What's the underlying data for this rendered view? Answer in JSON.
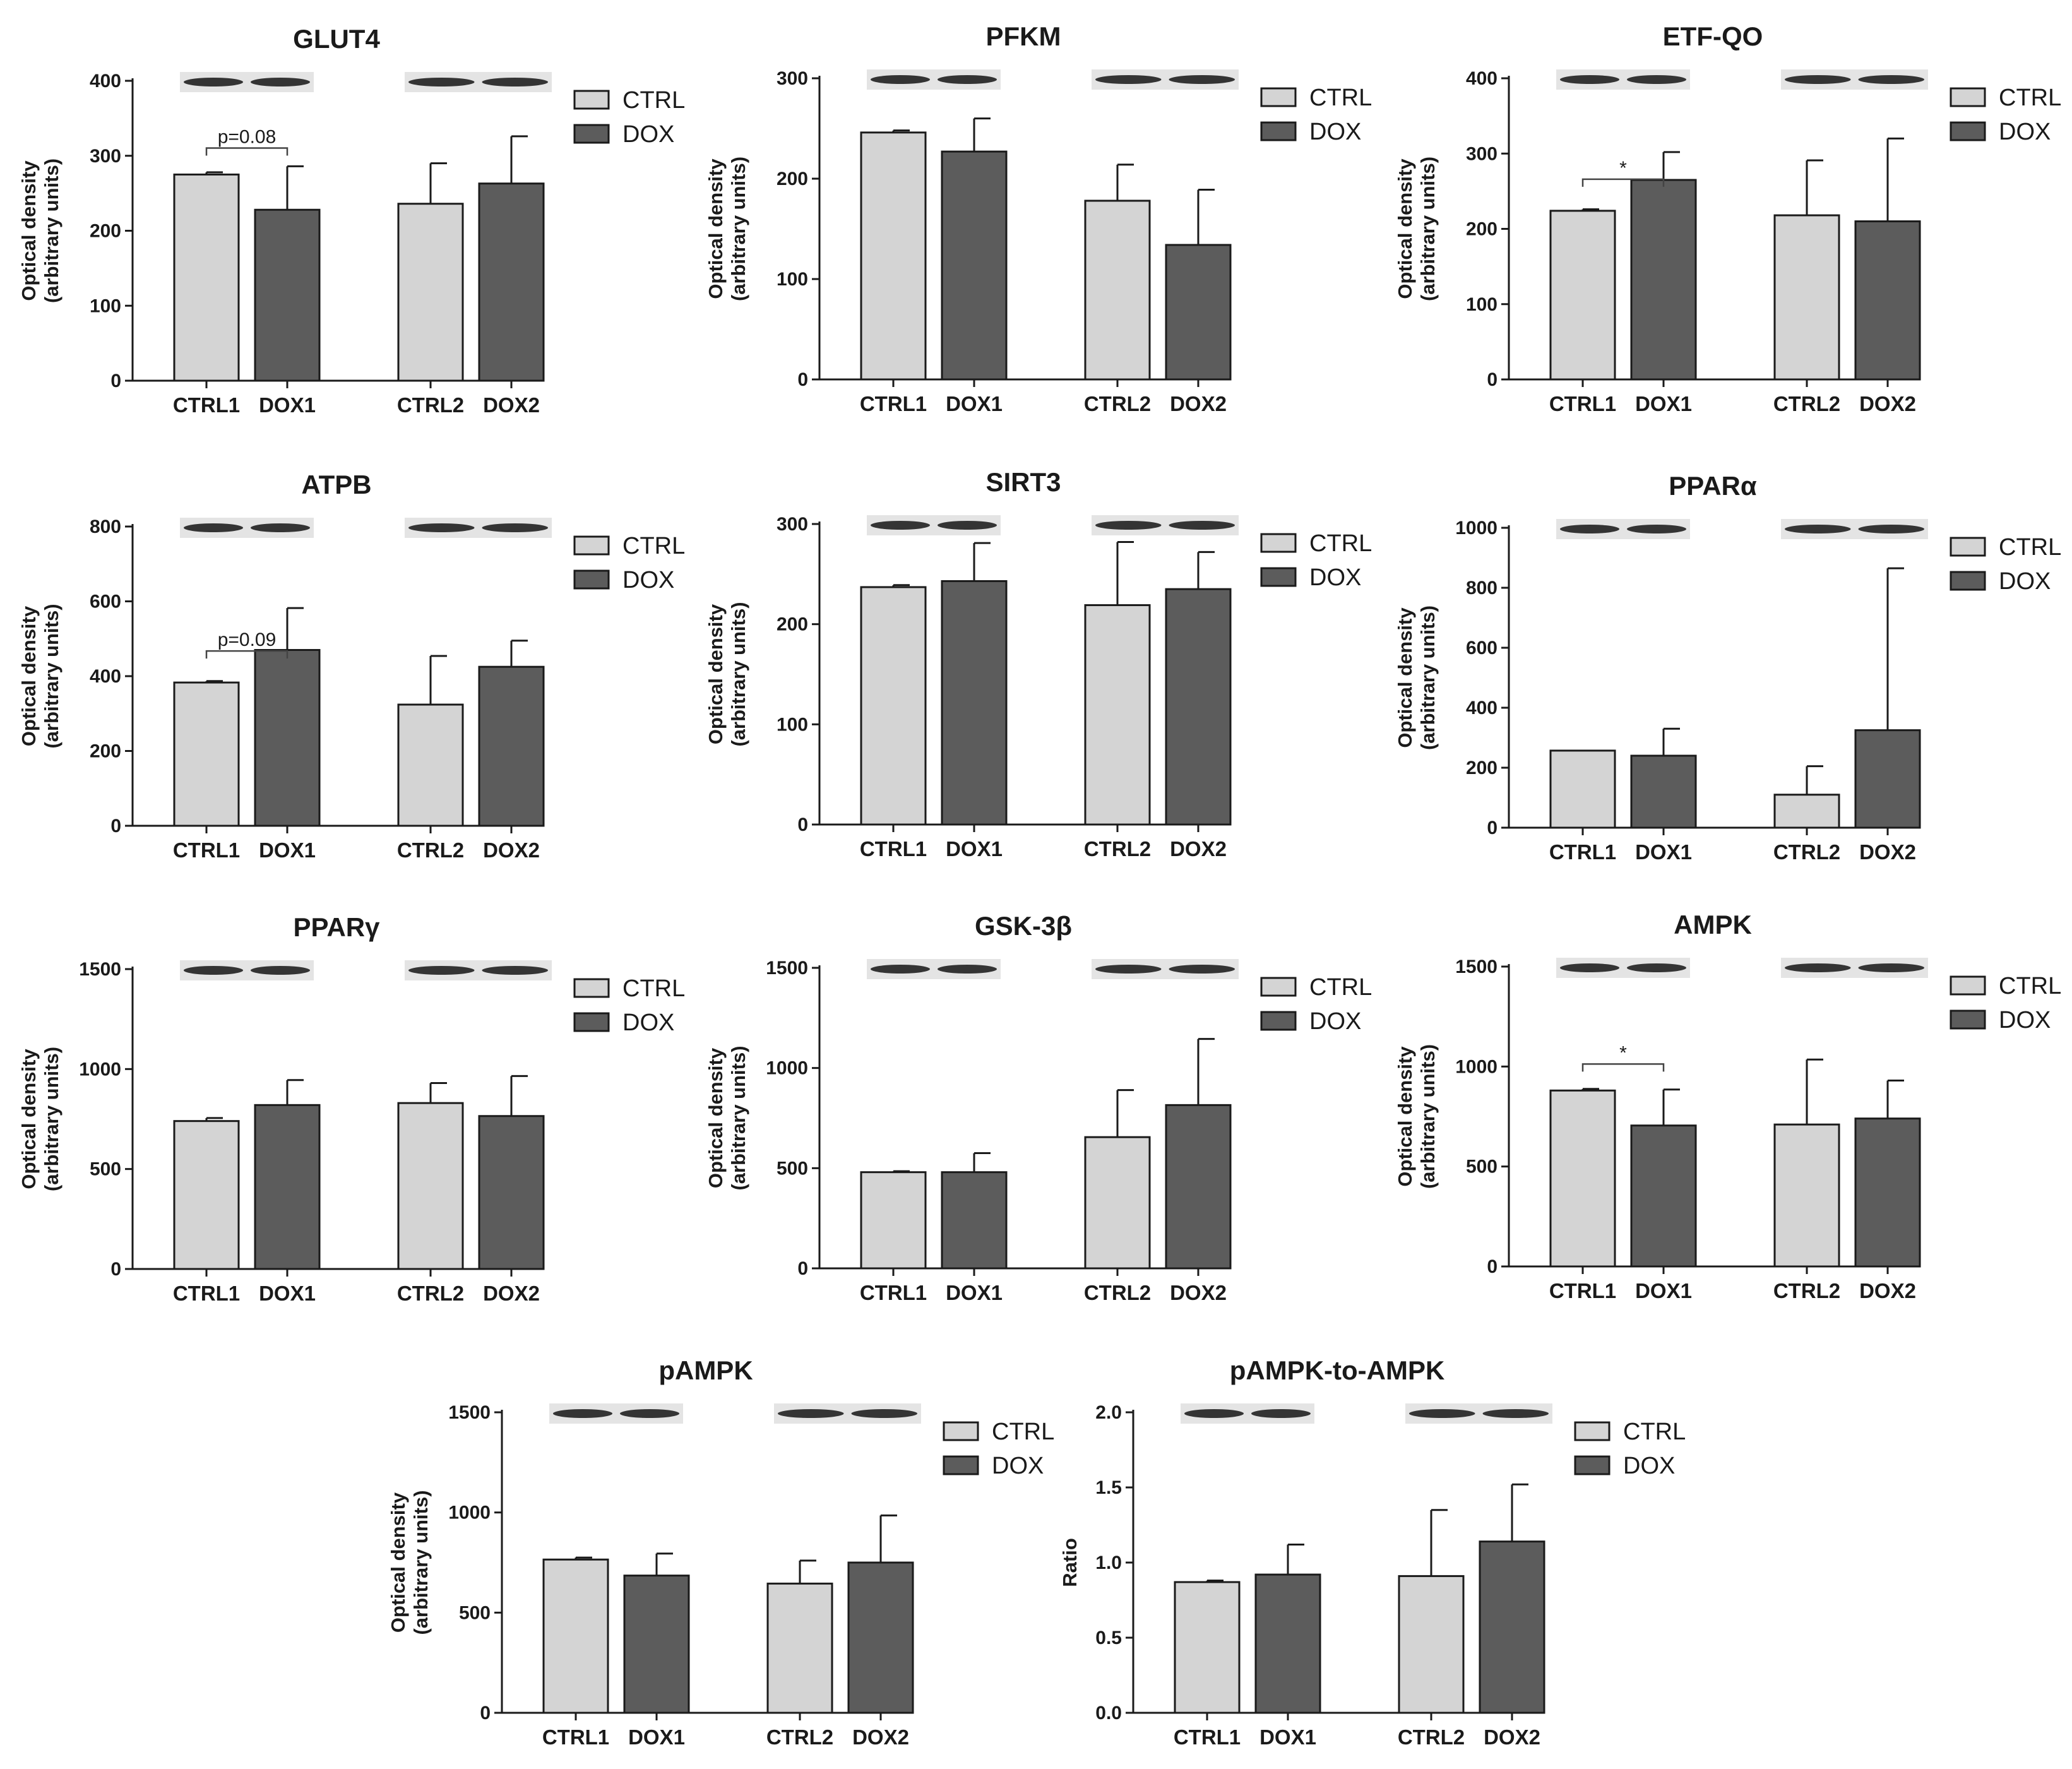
{
  "colors": {
    "ctrl": "#d4d4d4",
    "dox": "#5c5c5c",
    "axis": "#1a1a1a"
  },
  "chart_data": [
    {
      "type": "bar",
      "title": "GLUT4",
      "ylabel": [
        "Optical density",
        "(arbitrary units)"
      ],
      "ylim": [
        0,
        400
      ],
      "ticks": [
        0,
        100,
        200,
        300,
        400
      ],
      "categories": [
        "CTRL1",
        "DOX1",
        "CTRL2",
        "DOX2"
      ],
      "values": [
        275,
        228,
        236,
        263
      ],
      "errors": [
        3,
        58,
        54,
        63
      ],
      "legend": [
        "CTRL",
        "DOX"
      ],
      "annotation": {
        "label": "p=0.08"
      }
    },
    {
      "type": "bar",
      "title": "PFKM",
      "ylabel": [
        "Optical density",
        "(arbitrary units)"
      ],
      "ylim": [
        0,
        300
      ],
      "ticks": [
        0,
        100,
        200,
        300
      ],
      "categories": [
        "CTRL1",
        "DOX1",
        "CTRL2",
        "DOX2"
      ],
      "values": [
        246,
        227,
        178,
        134
      ],
      "errors": [
        2,
        33,
        36,
        55
      ],
      "legend": [
        "CTRL",
        "DOX"
      ]
    },
    {
      "type": "bar",
      "title": "ETF-QO",
      "ylabel": [
        "Optical density",
        "(arbitrary units)"
      ],
      "ylim": [
        0,
        400
      ],
      "ticks": [
        0,
        100,
        200,
        300,
        400
      ],
      "categories": [
        "CTRL1",
        "DOX1",
        "CTRL2",
        "DOX2"
      ],
      "values": [
        224,
        265,
        218,
        210
      ],
      "errors": [
        2,
        37,
        73,
        110
      ],
      "legend": [
        "CTRL",
        "DOX"
      ],
      "annotation": {
        "label": "*"
      }
    },
    {
      "type": "bar",
      "title": "ATPB",
      "ylabel": [
        "Optical density",
        "(arbitrary units)"
      ],
      "ylim": [
        0,
        800
      ],
      "ticks": [
        0,
        200,
        400,
        600,
        800
      ],
      "categories": [
        "CTRL1",
        "DOX1",
        "CTRL2",
        "DOX2"
      ],
      "values": [
        383,
        470,
        324,
        425
      ],
      "errors": [
        4,
        112,
        130,
        70
      ],
      "legend": [
        "CTRL",
        "DOX"
      ],
      "annotation": {
        "label": "p=0.09"
      }
    },
    {
      "type": "bar",
      "title": "SIRT3",
      "ylabel": [
        "Optical density",
        "(arbitrary units)"
      ],
      "ylim": [
        0,
        300
      ],
      "ticks": [
        0,
        100,
        200,
        300
      ],
      "categories": [
        "CTRL1",
        "DOX1",
        "CTRL2",
        "DOX2"
      ],
      "values": [
        237,
        243,
        219,
        235
      ],
      "errors": [
        2,
        38,
        63,
        37
      ],
      "legend": [
        "CTRL",
        "DOX"
      ]
    },
    {
      "type": "bar",
      "title": "PPARα",
      "ylabel": [
        "Optical density",
        "(arbitrary units)"
      ],
      "ylim": [
        0,
        1000
      ],
      "ticks": [
        0,
        200,
        400,
        600,
        800,
        1000
      ],
      "categories": [
        "CTRL1",
        "DOX1",
        "CTRL2",
        "DOX2"
      ],
      "values": [
        257,
        240,
        110,
        325
      ],
      "errors": [
        0,
        90,
        95,
        540
      ],
      "legend": [
        "CTRL",
        "DOX"
      ]
    },
    {
      "type": "bar",
      "title": "PPARγ",
      "ylabel": [
        "Optical density",
        "(arbitrary units)"
      ],
      "ylim": [
        0,
        1500
      ],
      "ticks": [
        0,
        500,
        1000,
        1500
      ],
      "categories": [
        "CTRL1",
        "DOX1",
        "CTRL2",
        "DOX2"
      ],
      "values": [
        740,
        820,
        830,
        765
      ],
      "errors": [
        15,
        125,
        100,
        200
      ],
      "legend": [
        "CTRL",
        "DOX"
      ]
    },
    {
      "type": "bar",
      "title": "GSK-3β",
      "ylabel": [
        "Optical density",
        "(arbitrary units)"
      ],
      "ylim": [
        0,
        1500
      ],
      "ticks": [
        0,
        500,
        1000,
        1500
      ],
      "categories": [
        "CTRL1",
        "DOX1",
        "CTRL2",
        "DOX2"
      ],
      "values": [
        480,
        480,
        655,
        815
      ],
      "errors": [
        5,
        95,
        235,
        330
      ],
      "legend": [
        "CTRL",
        "DOX"
      ]
    },
    {
      "type": "bar",
      "title": "AMPK",
      "ylabel": [
        "Optical density",
        "(arbitrary units)"
      ],
      "ylim": [
        0,
        1500
      ],
      "ticks": [
        0,
        500,
        1000,
        1500
      ],
      "categories": [
        "CTRL1",
        "DOX1",
        "CTRL2",
        "DOX2"
      ],
      "values": [
        880,
        705,
        710,
        740
      ],
      "errors": [
        8,
        180,
        325,
        190
      ],
      "legend": [
        "CTRL",
        "DOX"
      ],
      "annotation": {
        "label": "*"
      }
    },
    {
      "type": "bar",
      "title": "pAMPK",
      "ylabel": [
        "Optical density",
        "(arbitrary units)"
      ],
      "ylim": [
        0,
        1500
      ],
      "ticks": [
        0,
        500,
        1000,
        1500
      ],
      "categories": [
        "CTRL1",
        "DOX1",
        "CTRL2",
        "DOX2"
      ],
      "values": [
        765,
        685,
        645,
        750
      ],
      "errors": [
        10,
        110,
        115,
        235
      ],
      "legend": [
        "CTRL",
        "DOX"
      ]
    },
    {
      "type": "bar",
      "title": "pAMPK-to-AMPK",
      "ylabel": [
        "Ratio"
      ],
      "ylim": [
        0,
        2.0
      ],
      "ticks": [
        "0.0",
        "0.5",
        "1.0",
        "1.5",
        "2.0"
      ],
      "categories": [
        "CTRL1",
        "DOX1",
        "CTRL2",
        "DOX2"
      ],
      "values": [
        0.87,
        0.92,
        0.91,
        1.14
      ],
      "errors": [
        0.01,
        0.2,
        0.44,
        0.38
      ],
      "legend": [
        "CTRL",
        "DOX"
      ]
    }
  ]
}
